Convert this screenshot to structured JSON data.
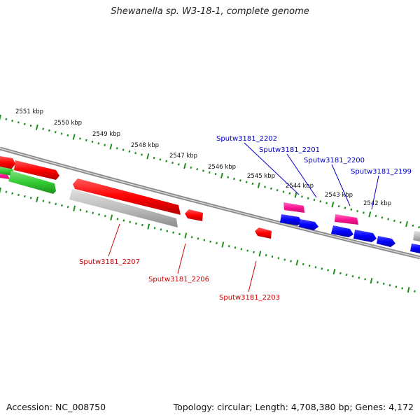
{
  "title": "Shewanella sp. W3-18-1, complete genome",
  "footer": {
    "accession": "Accession: NC_008750",
    "summary": "Topology: circular; Length: 4,708,380 bp; Genes: 4,172"
  },
  "colors": {
    "backbone": "#8a8a8a",
    "tick": "#1f8f1f",
    "cds": "#ff0000",
    "cds_alt": "#0000ff",
    "rna": "#ff1493",
    "other": "#bdbdbd",
    "green_feature": "#33cc33",
    "forward_label": "#0000cc",
    "reverse_label": "#cc0000"
  },
  "scale": {
    "unit": "kbp",
    "ticks": [
      "2551 kbp",
      "2550 kbp",
      "2549 kbp",
      "2548 kbp",
      "2547 kbp",
      "2546 kbp",
      "2545 kbp",
      "2544 kbp",
      "2543 kbp",
      "2542 kbp"
    ]
  },
  "gene_labels": {
    "forward": [
      "Sputw3181_2202",
      "Sputw3181_2201",
      "Sputw3181_2200",
      "Sputw3181_2199"
    ],
    "reverse": [
      "Sputw3181_2207",
      "Sputw3181_2206",
      "Sputw3181_2203"
    ]
  }
}
